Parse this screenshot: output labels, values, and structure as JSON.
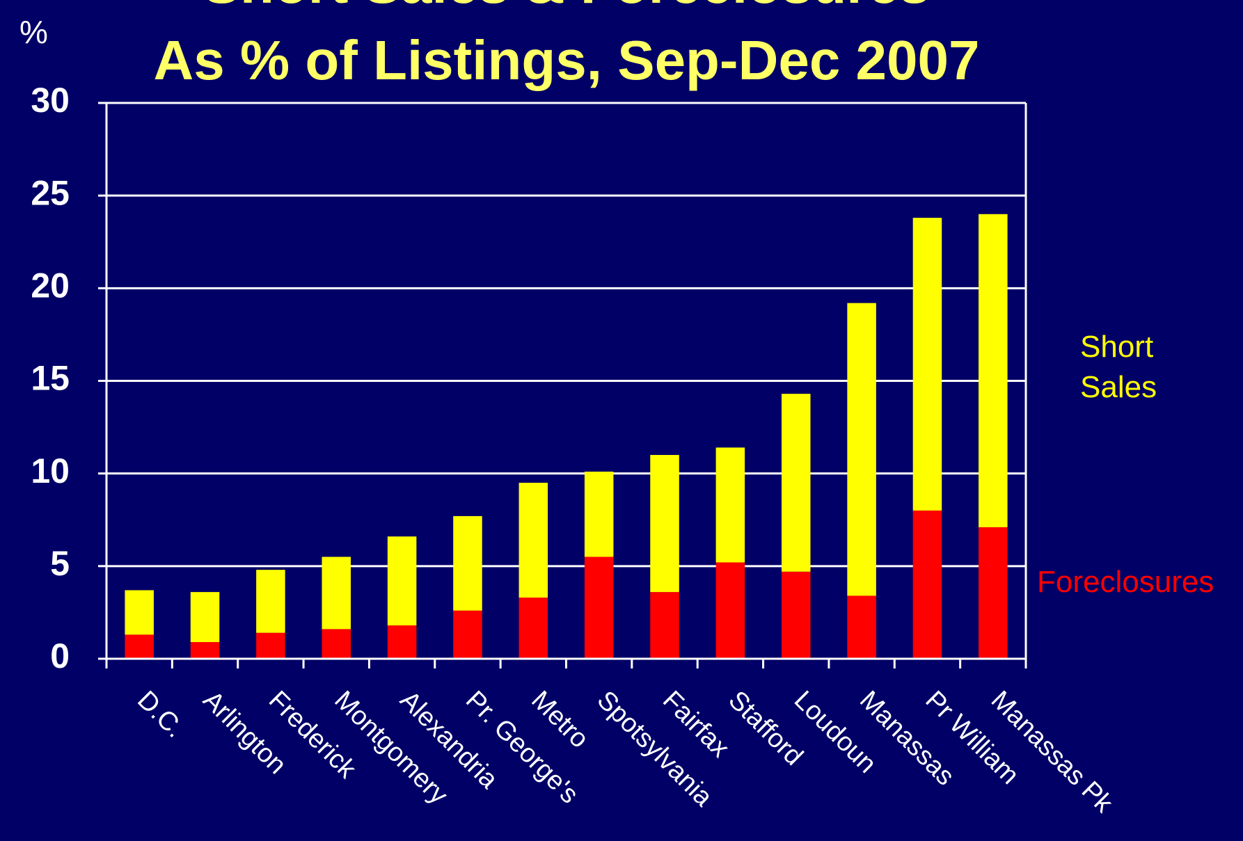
{
  "chart_data": {
    "type": "stacked_bar",
    "title": [
      "Short Sales & Foreclosures",
      "As % of Listings, Sep-Dec 2007"
    ],
    "y_label": "%",
    "categories": [
      "D.C.",
      "Arlington",
      "Frederick",
      "Montgomery",
      "Alexandria",
      "Pr. George's",
      "Metro",
      "Spotsylvania",
      "Fairfax",
      "Stafford",
      "Loudoun",
      "Manassas",
      "Pr William",
      "Manassas Pk"
    ],
    "series": [
      {
        "name": "Foreclosures",
        "color": "#ff0000",
        "values": [
          1.3,
          0.9,
          1.4,
          1.6,
          1.8,
          2.6,
          3.3,
          5.5,
          3.6,
          5.2,
          4.7,
          3.4,
          8.0,
          7.1
        ]
      },
      {
        "name": "Short Sales",
        "color": "#ffff00",
        "values": [
          2.4,
          2.7,
          3.4,
          3.9,
          4.8,
          5.1,
          6.2,
          4.6,
          7.4,
          6.2,
          9.6,
          15.8,
          15.8,
          16.9
        ]
      }
    ],
    "ylim": [
      0,
      30
    ],
    "yticks": [
      0,
      5,
      10,
      15,
      20,
      25,
      30
    ],
    "grid": true
  }
}
